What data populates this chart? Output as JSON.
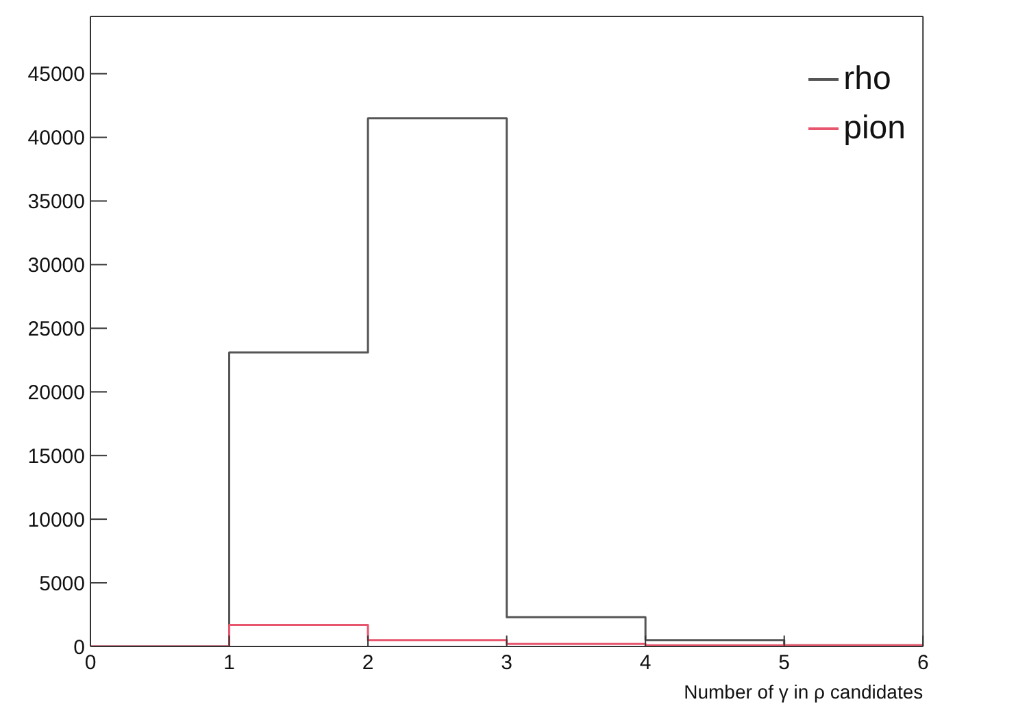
{
  "chart_data": {
    "type": "histogram",
    "xlabel": "Number of γ in ρ candidates",
    "bins": [
      0,
      1,
      2,
      3,
      4,
      5,
      6
    ],
    "series": [
      {
        "name": "rho",
        "color": "#555555",
        "values": [
          0,
          23100,
          41500,
          2300,
          500,
          100
        ]
      },
      {
        "name": "pion",
        "color": "#e8566e",
        "values": [
          0,
          1700,
          500,
          200,
          100,
          100
        ]
      }
    ],
    "xlim": [
      0,
      6
    ],
    "xticks": [
      0,
      1,
      2,
      3,
      4,
      5,
      6
    ],
    "ylim": [
      0,
      49500
    ],
    "yticks": [
      0,
      5000,
      10000,
      15000,
      20000,
      25000,
      30000,
      35000,
      40000,
      45000
    ],
    "grid": false,
    "legend": "top right"
  }
}
